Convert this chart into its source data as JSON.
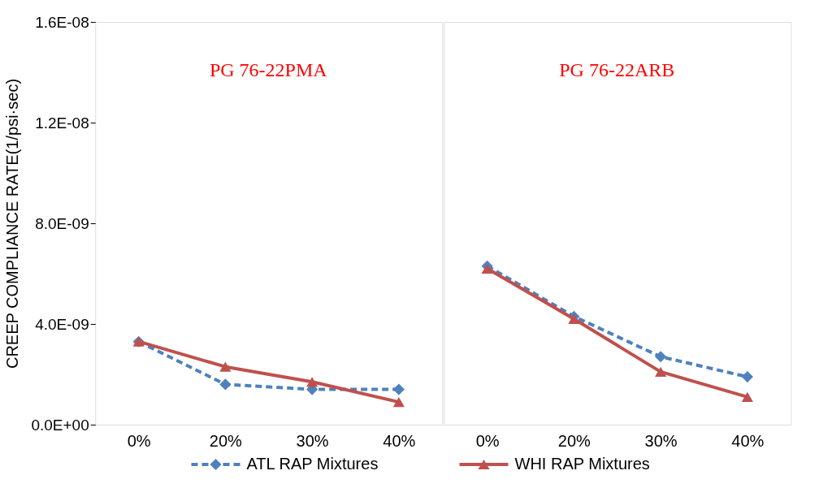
{
  "chart_data": [
    {
      "type": "line",
      "categories": [
        "0%",
        "20%",
        "30%",
        "40%"
      ],
      "ylabel": "CREEP COMPLIANCE  RATE(1/psi·sec)",
      "annotations": [
        "PG 76-22PMA"
      ],
      "ylim": [
        0,
        1.6e-08
      ],
      "yticks": [
        {
          "value": 0,
          "label": "0.0E+00"
        },
        {
          "value": 4e-09,
          "label": "4.0E-09"
        },
        {
          "value": 8e-09,
          "label": "8.0E-09"
        },
        {
          "value": 1.2e-08,
          "label": "1.2E-08"
        },
        {
          "value": 1.6e-08,
          "label": "1.6E-08"
        }
      ],
      "grid": false,
      "legend": "bottom",
      "series": [
        {
          "name": "ATL RAP Mixtures",
          "color": "#4f81bd",
          "marker": "diamond",
          "line_style": "dashed",
          "values": [
            3.3e-09,
            1.6e-09,
            1.4e-09,
            1.4e-09
          ]
        },
        {
          "name": "WHI RAP Mixtures",
          "color": "#c0504d",
          "marker": "triangle",
          "line_style": "solid",
          "values": [
            3.3e-09,
            2.3e-09,
            1.7e-09,
            9e-10
          ]
        }
      ]
    },
    {
      "type": "line",
      "categories": [
        "0%",
        "20%",
        "30%",
        "40%"
      ],
      "annotations": [
        "PG 76-22ARB"
      ],
      "ylim": [
        0,
        1.6e-08
      ],
      "grid": false,
      "legend": "bottom",
      "tick_labels": "x",
      "series": [
        {
          "name": "ATL RAP Mixtures",
          "color": "#4f81bd",
          "marker": "diamond",
          "line_style": "dashed",
          "values": [
            6.3e-09,
            4.3e-09,
            2.7e-09,
            1.9e-09
          ]
        },
        {
          "name": "WHI RAP Mixtures",
          "color": "#c0504d",
          "marker": "triangle",
          "line_style": "solid",
          "values": [
            6.2e-09,
            4.2e-09,
            2.1e-09,
            1.1e-09
          ]
        }
      ]
    }
  ]
}
